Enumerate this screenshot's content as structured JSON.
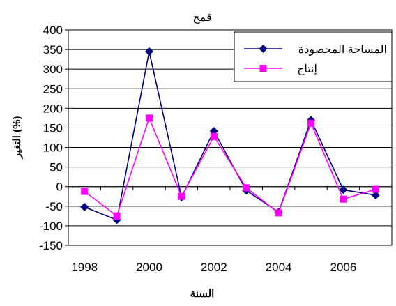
{
  "chart_data": {
    "type": "line",
    "title": "قمح",
    "xlabel": "السنة",
    "ylabel": "التغير (%)",
    "x": [
      1998,
      1999,
      2000,
      2001,
      2002,
      2003,
      2004,
      2005,
      2006,
      2007
    ],
    "x_tick_labels": [
      "1998",
      "2000",
      "2002",
      "2004",
      "2006"
    ],
    "ylim": [
      -150,
      400
    ],
    "y_tick_labels": [
      "400",
      "350",
      "300",
      "250",
      "200",
      "150",
      "100",
      "50",
      "0",
      "-50",
      "-100",
      "-150"
    ],
    "grid": true,
    "legend_position": "top-right",
    "series": [
      {
        "name": "المساحة المحصودة",
        "color": "#000080",
        "marker": "diamond",
        "values": [
          -52,
          -85,
          345,
          -27,
          142,
          -10,
          -65,
          170,
          -8,
          -22
        ]
      },
      {
        "name": "إنتاج",
        "color": "#FF00FF",
        "marker": "square",
        "values": [
          -12,
          -75,
          175,
          -25,
          128,
          -3,
          -67,
          162,
          -32,
          -7
        ]
      }
    ]
  }
}
